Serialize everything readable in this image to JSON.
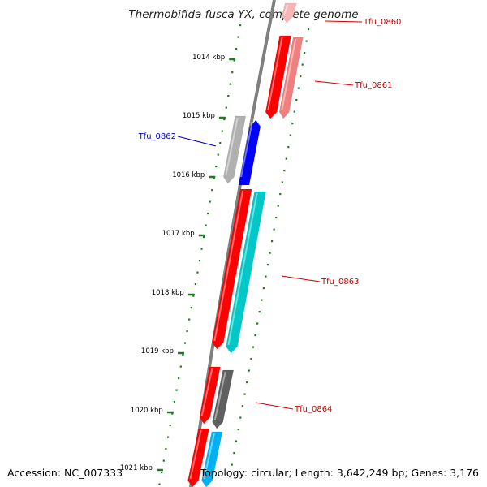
{
  "title": "Thermobifida fusca YX, complete genome",
  "footer": {
    "accession": "Accession: NC_007333",
    "summary": "Topology: circular; Length: 3,642,249 bp; Genes: 3,176"
  },
  "colors": {
    "backbone": "#808080",
    "ticks": "#1e7a1e",
    "label_red": "#cc0000",
    "label_blue": "#0000cc",
    "gene_red": "#ff0000",
    "gene_pink": "#f08080",
    "gene_blue": "#0000ff",
    "gene_grey": "#b0b0b0",
    "gene_cyan": "#00c8c8",
    "gene_darkgrey": "#606060",
    "gene_skyblue": "#00b0f0"
  },
  "kbp_labels": [
    "1014 kbp",
    "1015 kbp",
    "1016 kbp",
    "1017 kbp",
    "1018 kbp",
    "1019 kbp",
    "1020 kbp",
    "1021 kbp"
  ],
  "gene_labels": [
    {
      "name": "Tfu_0860",
      "color": "red"
    },
    {
      "name": "Tfu_0861",
      "color": "red"
    },
    {
      "name": "Tfu_0862",
      "color": "blue"
    },
    {
      "name": "Tfu_0863",
      "color": "red"
    },
    {
      "name": "Tfu_0864",
      "color": "red"
    }
  ]
}
